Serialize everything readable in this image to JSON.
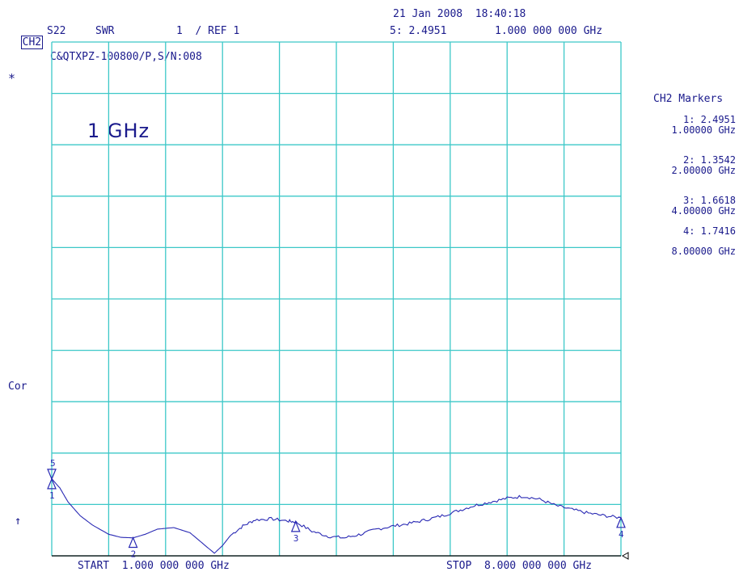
{
  "header": {
    "date_time": "21 Jan 2008  18:40:18",
    "channel": "CH2",
    "param": "S22",
    "format": "SWR",
    "scale": "1  / REF 1",
    "active_marker": "5: 2.4951",
    "marker_freq": "1.000 000 000 GHz"
  },
  "device": "C&QTXPZ-100800/P,S/N:008",
  "star": "*",
  "cor": "Cor",
  "ref_arrow": "↑",
  "annotation": "1  GHz",
  "footer": {
    "start": "START  1.000 000 000 GHz",
    "stop": "STOP  8.000 000 000 GHz"
  },
  "markers_panel": {
    "title": "CH2 Markers",
    "m1_val": "1: 2.4951",
    "m1_freq": "1.00000 GHz",
    "m2_val": "2: 1.3542",
    "m2_freq": "2.00000 GHz",
    "m3_val": "3: 1.6618",
    "m3_freq": "4.00000 GHz",
    "m4_val": "4: 1.7416",
    "m4_freq": "8.00000 GHz"
  },
  "colors": {
    "grid": "#3cc8c8",
    "trace": "#2a2ab4",
    "text": "#1a1a8c"
  },
  "chart_data": {
    "type": "line",
    "xlabel": "",
    "ylabel": "",
    "xlim": [
      1,
      8
    ],
    "ylim": [
      1,
      11
    ],
    "reference_value": 1,
    "grid": true,
    "series": [
      {
        "x": [
          1.0,
          1.1,
          1.2,
          1.35,
          1.5,
          1.7,
          1.85,
          2.0,
          2.15,
          2.3,
          2.5,
          2.7,
          2.85,
          3.0,
          3.1,
          3.2,
          3.35,
          3.5,
          3.7,
          3.9,
          4.0,
          4.2,
          4.4,
          4.6,
          4.8,
          5.0,
          5.2,
          5.4,
          5.6,
          5.8,
          6.0,
          6.2,
          6.4,
          6.6,
          6.8,
          7.0,
          7.2,
          7.4,
          7.6,
          7.8,
          8.0
        ],
        "y": [
          2.5,
          2.32,
          2.05,
          1.78,
          1.6,
          1.42,
          1.36,
          1.35,
          1.42,
          1.52,
          1.55,
          1.45,
          1.25,
          1.05,
          1.2,
          1.4,
          1.58,
          1.7,
          1.72,
          1.68,
          1.66,
          1.48,
          1.38,
          1.35,
          1.42,
          1.52,
          1.58,
          1.63,
          1.7,
          1.78,
          1.88,
          1.98,
          2.05,
          2.12,
          2.16,
          2.1,
          1.98,
          1.9,
          1.83,
          1.78,
          1.74
        ]
      }
    ],
    "markers": [
      {
        "id": "1",
        "x": 1.0,
        "y": 2.4951
      },
      {
        "id": "2",
        "x": 2.0,
        "y": 1.3542
      },
      {
        "id": "3",
        "x": 4.0,
        "y": 1.6618
      },
      {
        "id": "4",
        "x": 8.0,
        "y": 1.7416
      },
      {
        "id": "5",
        "x": 1.0,
        "y": 2.4951
      }
    ]
  }
}
